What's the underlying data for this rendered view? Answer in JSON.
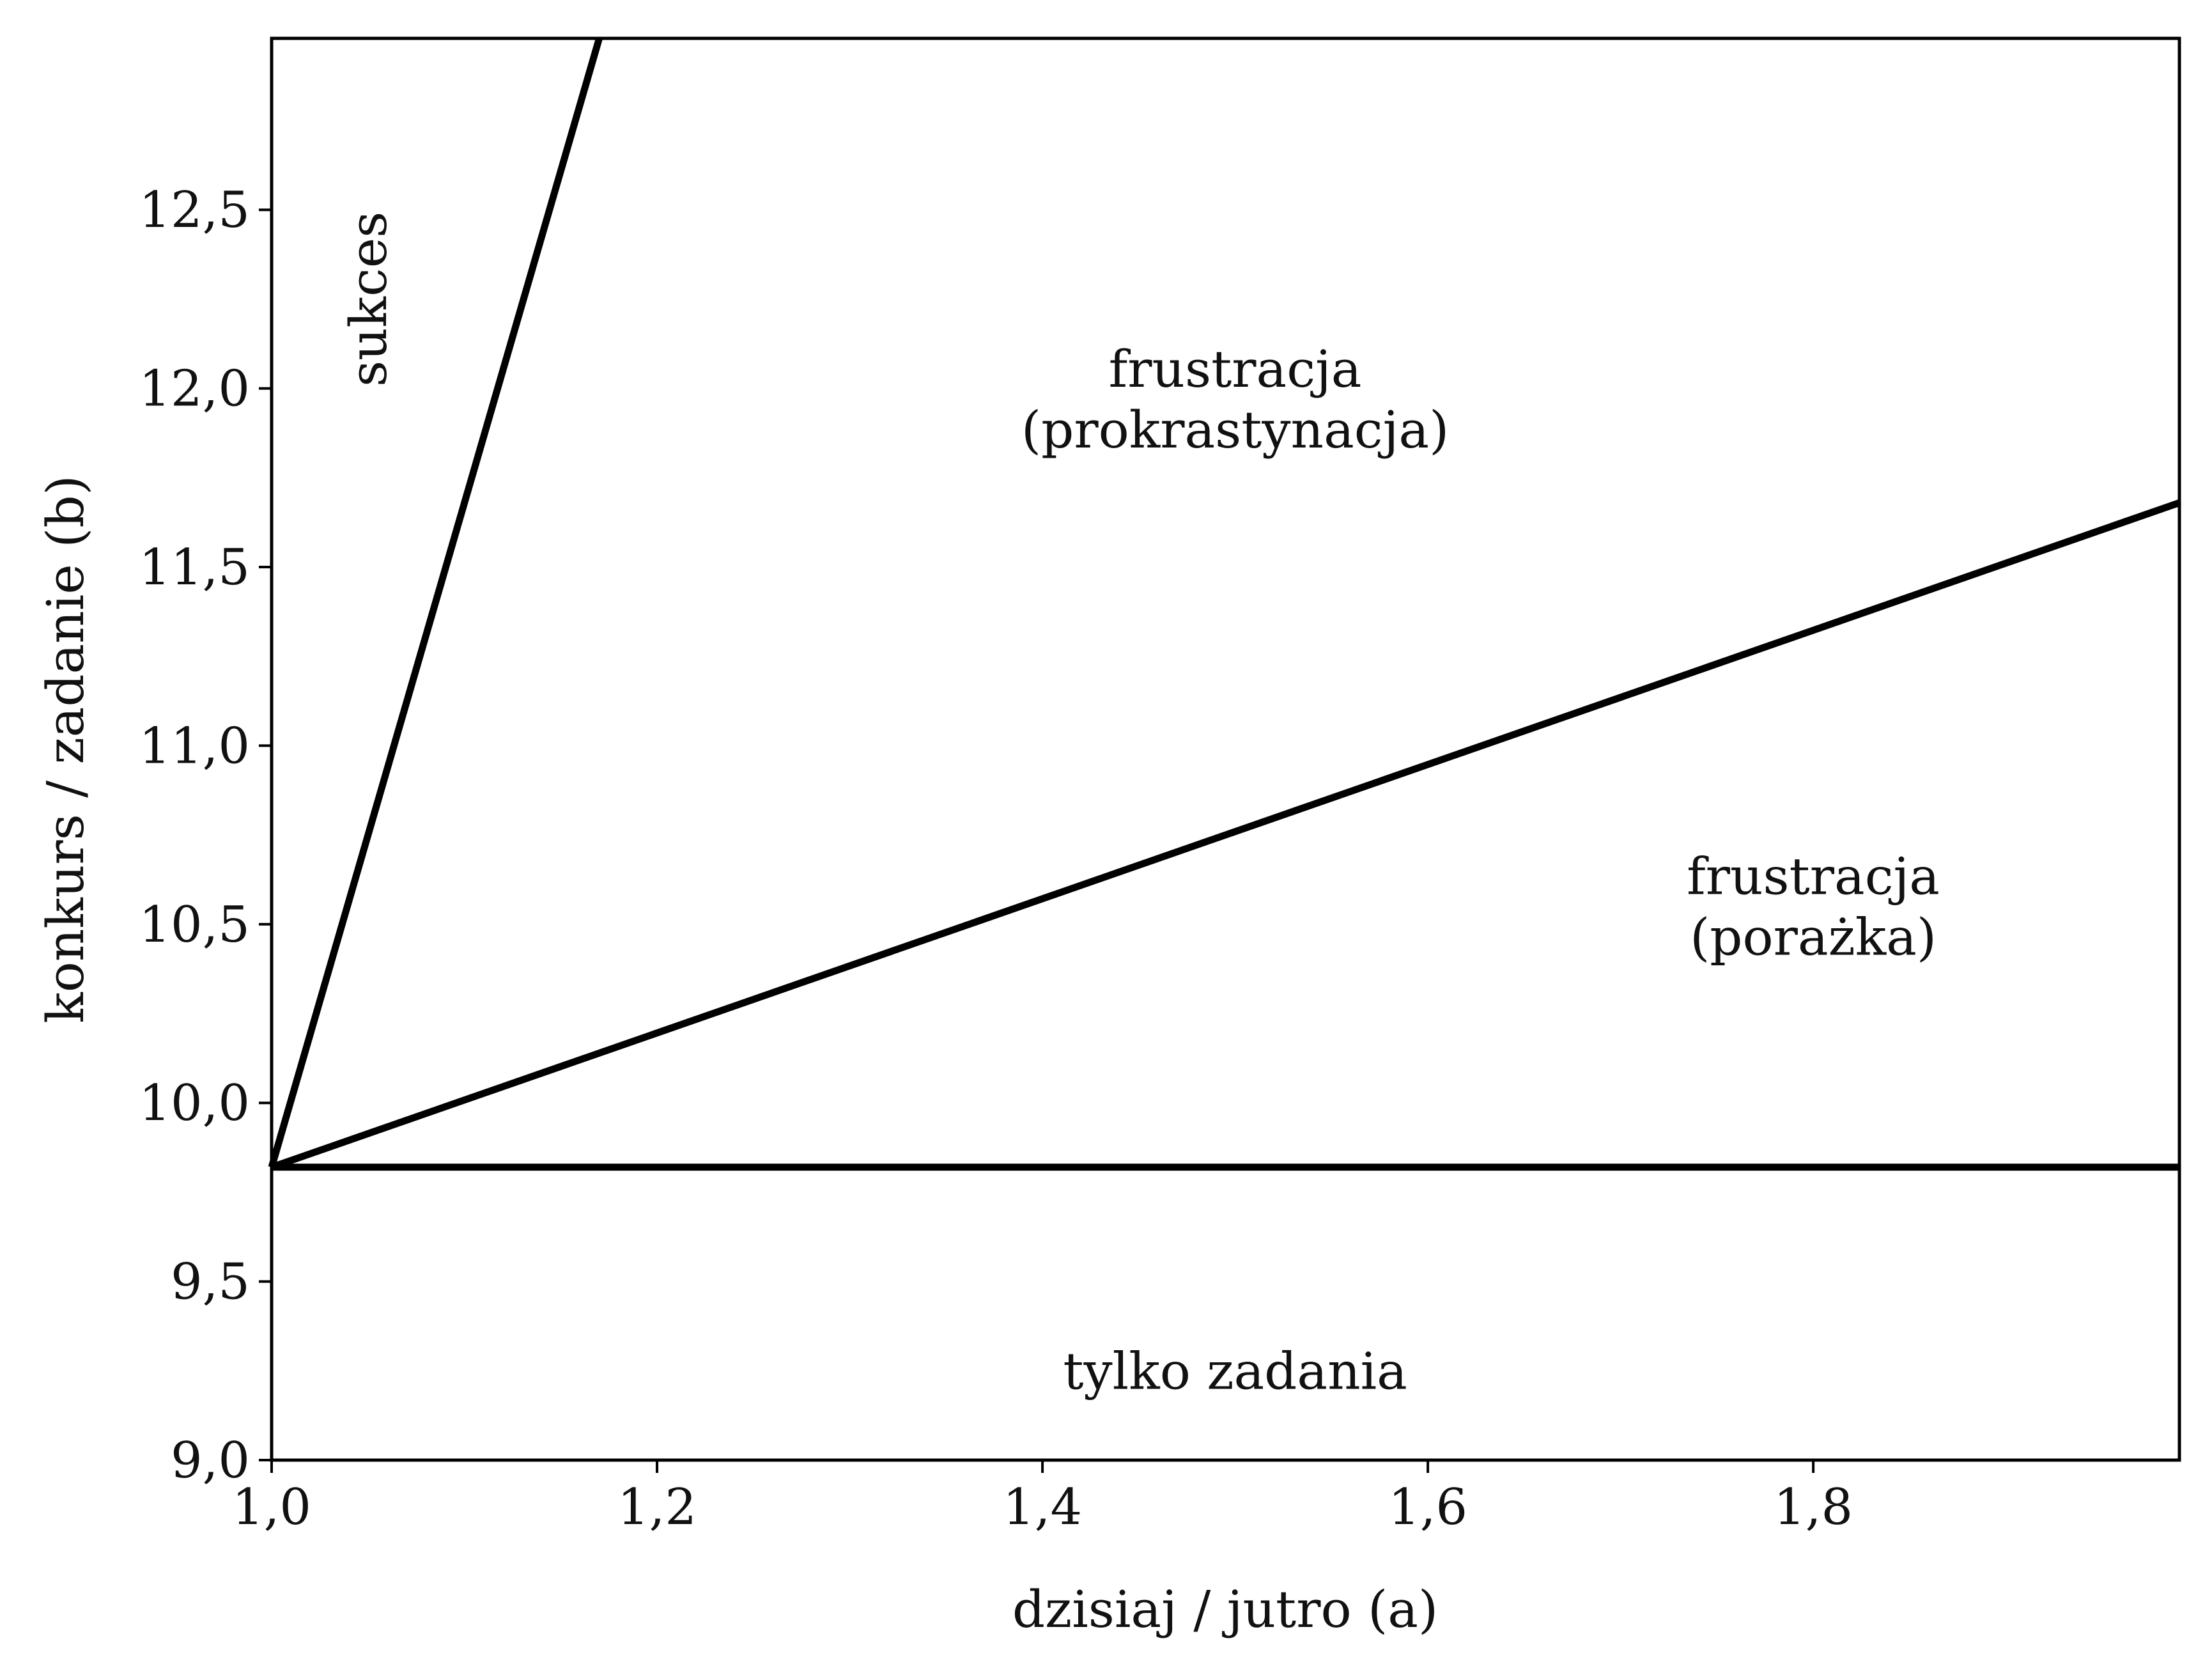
{
  "chart_data": {
    "type": "line",
    "title": "",
    "xlabel": "dzisiaj / jutro (a)",
    "ylabel": "konkurs / zadanie (b)",
    "xlim": [
      1.0,
      1.99
    ],
    "ylim": [
      9.0,
      12.98
    ],
    "xticks": [
      {
        "value": 1.0,
        "label": "1,0"
      },
      {
        "value": 1.2,
        "label": "1,2"
      },
      {
        "value": 1.4,
        "label": "1,4"
      },
      {
        "value": 1.6,
        "label": "1,6"
      },
      {
        "value": 1.8,
        "label": "1,8"
      }
    ],
    "yticks": [
      {
        "value": 9.0,
        "label": "9,0"
      },
      {
        "value": 9.5,
        "label": "9,5"
      },
      {
        "value": 10.0,
        "label": "10,0"
      },
      {
        "value": 10.5,
        "label": "10,5"
      },
      {
        "value": 11.0,
        "label": "11,0"
      },
      {
        "value": 11.5,
        "label": "11,5"
      },
      {
        "value": 12.0,
        "label": "12,0"
      },
      {
        "value": 12.5,
        "label": "12,5"
      }
    ],
    "grid": false,
    "series": [
      {
        "name": "boundary-steep",
        "x": [
          1.0,
          1.17
        ],
        "y": [
          9.82,
          12.98
        ]
      },
      {
        "name": "boundary-diagonal",
        "x": [
          1.0,
          1.99
        ],
        "y": [
          9.82,
          11.68
        ]
      },
      {
        "name": "boundary-horizontal",
        "x": [
          1.0,
          1.99
        ],
        "y": [
          9.82,
          9.82
        ]
      }
    ],
    "annotations": [
      {
        "id": "sukces",
        "lines": [
          "sukces"
        ],
        "x": 1.05,
        "y": 12.25,
        "rotate": true
      },
      {
        "id": "frustracja-prokrastynacja",
        "lines": [
          "frustracja",
          "(prokrastynacja)"
        ],
        "x": 1.5,
        "y": 11.97,
        "rotate": false
      },
      {
        "id": "frustracja-porazka",
        "lines": [
          "frustracja",
          "(porażka)"
        ],
        "x": 1.8,
        "y": 10.55,
        "rotate": false
      },
      {
        "id": "tylko-zadania",
        "lines": [
          "tylko zadania"
        ],
        "x": 1.5,
        "y": 9.25,
        "rotate": false
      }
    ]
  }
}
